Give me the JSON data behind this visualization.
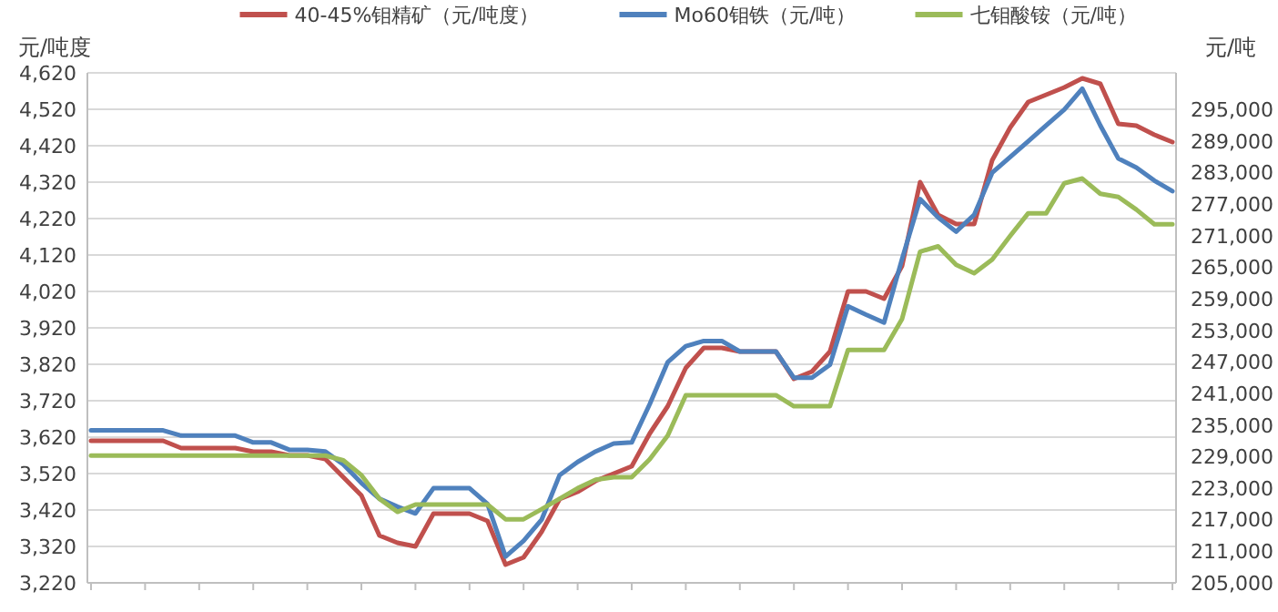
{
  "chart_data": {
    "type": "line",
    "ylabel": "元/吨度",
    "y2label": "元/吨",
    "categories": [
      null,
      null,
      null,
      null,
      null,
      null,
      null,
      null,
      null,
      null,
      null,
      null,
      null,
      null,
      null,
      null,
      null,
      null,
      null,
      null,
      null,
      null,
      null,
      null,
      null,
      null,
      null,
      null,
      null,
      null,
      null,
      null,
      null,
      null,
      null,
      null,
      null,
      null,
      null,
      null,
      null,
      null,
      null,
      null,
      null,
      null,
      null,
      null,
      null,
      null,
      null,
      null,
      null,
      null,
      null,
      null,
      null,
      null,
      null,
      null,
      null
    ],
    "series": [
      {
        "name": "40-45%钼精矿（元/吨度）",
        "color": "#c0504d",
        "values": [
          3610,
          3610,
          3610,
          3610,
          3610,
          3590,
          3590,
          3590,
          3590,
          3580,
          3580,
          3570,
          3570,
          3560,
          3510,
          3460,
          3350,
          3330,
          3320,
          3410,
          3410,
          3410,
          3390,
          3270,
          3290,
          3360,
          3450,
          3470,
          3500,
          3520,
          3540,
          3630,
          3705,
          3810,
          3865,
          3865,
          3855,
          3855,
          3855,
          3780,
          3800,
          3855,
          4020,
          4020,
          4000,
          4090,
          4320,
          4230,
          4205,
          4205,
          4380,
          4470,
          4540,
          4560,
          4580,
          4605,
          4590,
          4480,
          4475,
          4450,
          4430
        ]
      },
      {
        "name": "Mo60钼铁（元/吨）",
        "color": "#4f81bd",
        "axis": "y2",
        "values": [
          234000,
          234000,
          234000,
          234000,
          234000,
          233000,
          233000,
          233000,
          233000,
          231700,
          231700,
          230300,
          230300,
          230000,
          227500,
          224000,
          221000,
          219500,
          218200,
          223000,
          223000,
          223000,
          220000,
          210000,
          213000,
          217000,
          225500,
          228000,
          230000,
          231500,
          231700,
          239000,
          247000,
          250000,
          251000,
          251000,
          249000,
          249000,
          249000,
          244000,
          244000,
          246500,
          257600,
          256000,
          254500,
          266600,
          278000,
          274500,
          271800,
          275000,
          283000,
          286000,
          289000,
          292000,
          295000,
          299000,
          292000,
          285700,
          284000,
          281500,
          279500
        ]
      },
      {
        "name": "七钼酸铵（元/吨）",
        "color": "#9bbb59",
        "axis": "y2",
        "values": [
          229200,
          229200,
          229200,
          229200,
          229200,
          229200,
          229200,
          229200,
          229200,
          229200,
          229200,
          229200,
          229200,
          229200,
          228300,
          225500,
          221000,
          218500,
          219900,
          219900,
          219900,
          219900,
          219900,
          217100,
          217100,
          219000,
          221000,
          223000,
          224600,
          225100,
          225100,
          228500,
          233000,
          240700,
          240700,
          240700,
          240700,
          240700,
          240700,
          238600,
          238600,
          238600,
          249300,
          249300,
          249300,
          255200,
          268000,
          269000,
          265500,
          263900,
          266500,
          271000,
          275300,
          275300,
          281000,
          281900,
          279000,
          278400,
          276000,
          273200,
          273200
        ]
      }
    ],
    "ylim": [
      3220,
      4620
    ],
    "yticks": [
      {
        "value": 3220,
        "label": "3,220"
      },
      {
        "value": 3320,
        "label": "3,320"
      },
      {
        "value": 3420,
        "label": "3,420"
      },
      {
        "value": 3520,
        "label": "3,520"
      },
      {
        "value": 3620,
        "label": "3,620"
      },
      {
        "value": 3720,
        "label": "3,720"
      },
      {
        "value": 3820,
        "label": "3,820"
      },
      {
        "value": 3920,
        "label": "3,920"
      },
      {
        "value": 4020,
        "label": "4,020"
      },
      {
        "value": 4120,
        "label": "4,120"
      },
      {
        "value": 4220,
        "label": "4,220"
      },
      {
        "value": 4320,
        "label": "4,320"
      },
      {
        "value": 4420,
        "label": "4,420"
      },
      {
        "value": 4520,
        "label": "4,520"
      },
      {
        "value": 4620,
        "label": "4,620"
      }
    ],
    "y2lim": [
      205000,
      302000
    ],
    "y2ticks": [
      {
        "value": 205000,
        "label": "205,000"
      },
      {
        "value": 211000,
        "label": "211,000"
      },
      {
        "value": 217000,
        "label": "217,000"
      },
      {
        "value": 223000,
        "label": "223,000"
      },
      {
        "value": 229000,
        "label": "229,000"
      },
      {
        "value": 235000,
        "label": "235,000"
      },
      {
        "value": 241000,
        "label": "241,000"
      },
      {
        "value": 247000,
        "label": "247,000"
      },
      {
        "value": 253000,
        "label": "253,000"
      },
      {
        "value": 259000,
        "label": "259,000"
      },
      {
        "value": 265000,
        "label": "265,000"
      },
      {
        "value": 271000,
        "label": "271,000"
      },
      {
        "value": 277000,
        "label": "277,000"
      },
      {
        "value": 283000,
        "label": "283,000"
      },
      {
        "value": 289000,
        "label": "289,000"
      },
      {
        "value": 295000,
        "label": "295,000"
      }
    ],
    "grid": "y",
    "legend": "top",
    "marker": "none",
    "line_style": "solid"
  }
}
